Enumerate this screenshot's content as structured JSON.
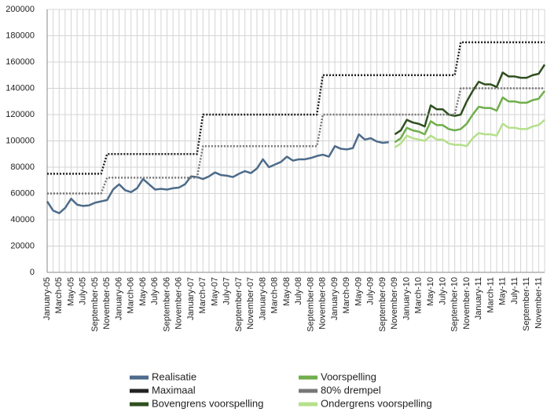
{
  "chart_data": {
    "type": "line",
    "categories": [
      "January-05",
      null,
      "March-05",
      null,
      "May-05",
      null,
      "July-05",
      null,
      "September-05",
      null,
      "November-05",
      null,
      "January-06",
      null,
      "March-06",
      null,
      "May-06",
      null,
      "July-06",
      null,
      "September-06",
      null,
      "November-06",
      null,
      "January-07",
      null,
      "March-07",
      null,
      "May-07",
      null,
      "July-07",
      null,
      "September-07",
      null,
      "November-07",
      null,
      "January-08",
      null,
      "March-08",
      null,
      "May-08",
      null,
      "July-08",
      null,
      "September-08",
      null,
      "November-08",
      null,
      "January-09",
      null,
      "March-09",
      null,
      "May-09",
      null,
      "July-09",
      null,
      "September-09",
      null,
      "November-09",
      null,
      "January-10",
      null,
      "March-10",
      null,
      "May-10",
      null,
      "July-10",
      null,
      "September-10",
      null,
      "November-10",
      null,
      "January-11",
      null,
      "March-11",
      null,
      "May-11",
      null,
      "July-11",
      null,
      "September-11",
      null,
      "November-11",
      null
    ],
    "series": [
      {
        "name": "Realisatie",
        "color": "#4d6b8a",
        "dashed": false,
        "values": [
          54000,
          47000,
          45000,
          49000,
          56000,
          51500,
          50500,
          51000,
          53000,
          54000,
          55000,
          63000,
          67000,
          62500,
          61000,
          64000,
          71000,
          67000,
          63000,
          63500,
          63000,
          64000,
          64500,
          67000,
          73000,
          72500,
          71000,
          73000,
          76000,
          74000,
          73500,
          72500,
          75000,
          77000,
          75500,
          79000,
          86000,
          80000,
          82000,
          84000,
          88000,
          85000,
          86000,
          86000,
          87000,
          88500,
          89500,
          88000,
          96000,
          94000,
          93500,
          94500,
          105000,
          101000,
          102000,
          99500,
          98500,
          99000,
          null,
          null,
          null,
          null,
          null,
          null,
          null,
          null,
          null,
          null,
          null,
          null,
          null,
          null,
          null,
          null,
          null,
          null,
          null,
          null,
          null,
          null,
          null,
          null,
          null,
          null
        ]
      },
      {
        "name": "Maximaal",
        "color": "#222222",
        "dashed": true,
        "values": [
          75000,
          75000,
          75000,
          75000,
          75000,
          75000,
          75000,
          75000,
          75000,
          75000,
          90000,
          90000,
          90000,
          90000,
          90000,
          90000,
          90000,
          90000,
          90000,
          90000,
          90000,
          90000,
          90000,
          90000,
          90000,
          90000,
          120000,
          120000,
          120000,
          120000,
          120000,
          120000,
          120000,
          120000,
          120000,
          120000,
          120000,
          120000,
          120000,
          120000,
          120000,
          120000,
          120000,
          120000,
          120000,
          120000,
          150000,
          150000,
          150000,
          150000,
          150000,
          150000,
          150000,
          150000,
          150000,
          150000,
          150000,
          150000,
          150000,
          150000,
          150000,
          150000,
          150000,
          150000,
          150000,
          150000,
          150000,
          150000,
          150000,
          175000,
          175000,
          175000,
          175000,
          175000,
          175000,
          175000,
          175000,
          175000,
          175000,
          175000,
          175000,
          175000,
          175000,
          175000
        ]
      },
      {
        "name": "Bovengrens voorspelling",
        "color": "#2f4f1f",
        "dashed": false,
        "values": [
          null,
          null,
          null,
          null,
          null,
          null,
          null,
          null,
          null,
          null,
          null,
          null,
          null,
          null,
          null,
          null,
          null,
          null,
          null,
          null,
          null,
          null,
          null,
          null,
          null,
          null,
          null,
          null,
          null,
          null,
          null,
          null,
          null,
          null,
          null,
          null,
          null,
          null,
          null,
          null,
          null,
          null,
          null,
          null,
          null,
          null,
          null,
          null,
          null,
          null,
          null,
          null,
          null,
          null,
          null,
          null,
          null,
          null,
          105000,
          108000,
          116000,
          114000,
          113000,
          111000,
          127000,
          124000,
          124000,
          120000,
          119000,
          120000,
          130000,
          138000,
          145000,
          143000,
          143000,
          141000,
          152000,
          149000,
          149000,
          148000,
          148000,
          150000,
          151000,
          158000
        ]
      },
      {
        "name": "Voorspelling",
        "color": "#6fae4a",
        "dashed": false,
        "values": [
          null,
          null,
          null,
          null,
          null,
          null,
          null,
          null,
          null,
          null,
          null,
          null,
          null,
          null,
          null,
          null,
          null,
          null,
          null,
          null,
          null,
          null,
          null,
          null,
          null,
          null,
          null,
          null,
          null,
          null,
          null,
          null,
          null,
          null,
          null,
          null,
          null,
          null,
          null,
          null,
          null,
          null,
          null,
          null,
          null,
          null,
          null,
          null,
          null,
          null,
          null,
          null,
          null,
          null,
          null,
          null,
          null,
          null,
          99000,
          102000,
          110000,
          108000,
          107000,
          105000,
          115000,
          112000,
          112000,
          109000,
          108000,
          109000,
          113000,
          120000,
          126000,
          125000,
          125000,
          123000,
          133000,
          130000,
          130000,
          129000,
          129000,
          131000,
          132000,
          138000
        ]
      },
      {
        "name": "80% drempel",
        "color": "#777777",
        "dashed": true,
        "values": [
          60000,
          60000,
          60000,
          60000,
          60000,
          60000,
          60000,
          60000,
          60000,
          60000,
          72000,
          72000,
          72000,
          72000,
          72000,
          72000,
          72000,
          72000,
          72000,
          72000,
          72000,
          72000,
          72000,
          72000,
          72000,
          72000,
          96000,
          96000,
          96000,
          96000,
          96000,
          96000,
          96000,
          96000,
          96000,
          96000,
          96000,
          96000,
          96000,
          96000,
          96000,
          96000,
          96000,
          96000,
          96000,
          96000,
          120000,
          120000,
          120000,
          120000,
          120000,
          120000,
          120000,
          120000,
          120000,
          120000,
          120000,
          120000,
          120000,
          120000,
          120000,
          120000,
          120000,
          120000,
          120000,
          120000,
          120000,
          120000,
          120000,
          140000,
          140000,
          140000,
          140000,
          140000,
          140000,
          140000,
          140000,
          140000,
          140000,
          140000,
          140000,
          140000,
          140000,
          140000
        ]
      },
      {
        "name": "Ondergrens voorspelling",
        "color": "#b5e08a",
        "dashed": false,
        "values": [
          null,
          null,
          null,
          null,
          null,
          null,
          null,
          null,
          null,
          null,
          null,
          null,
          null,
          null,
          null,
          null,
          null,
          null,
          null,
          null,
          null,
          null,
          null,
          null,
          null,
          null,
          null,
          null,
          null,
          null,
          null,
          null,
          null,
          null,
          null,
          null,
          null,
          null,
          null,
          null,
          null,
          null,
          null,
          null,
          null,
          null,
          null,
          null,
          null,
          null,
          null,
          null,
          null,
          null,
          null,
          null,
          null,
          null,
          95000,
          98000,
          104000,
          102000,
          101000,
          100000,
          104000,
          101000,
          101000,
          98000,
          97000,
          97000,
          96000,
          102000,
          106000,
          105000,
          105000,
          104000,
          113000,
          110000,
          110000,
          109000,
          109000,
          111000,
          112000,
          116000
        ]
      }
    ],
    "ylim": [
      0,
      200000
    ],
    "yticks": [
      0,
      20000,
      40000,
      60000,
      80000,
      100000,
      120000,
      140000,
      160000,
      180000,
      200000
    ],
    "grid": true,
    "legend": "bottom"
  }
}
